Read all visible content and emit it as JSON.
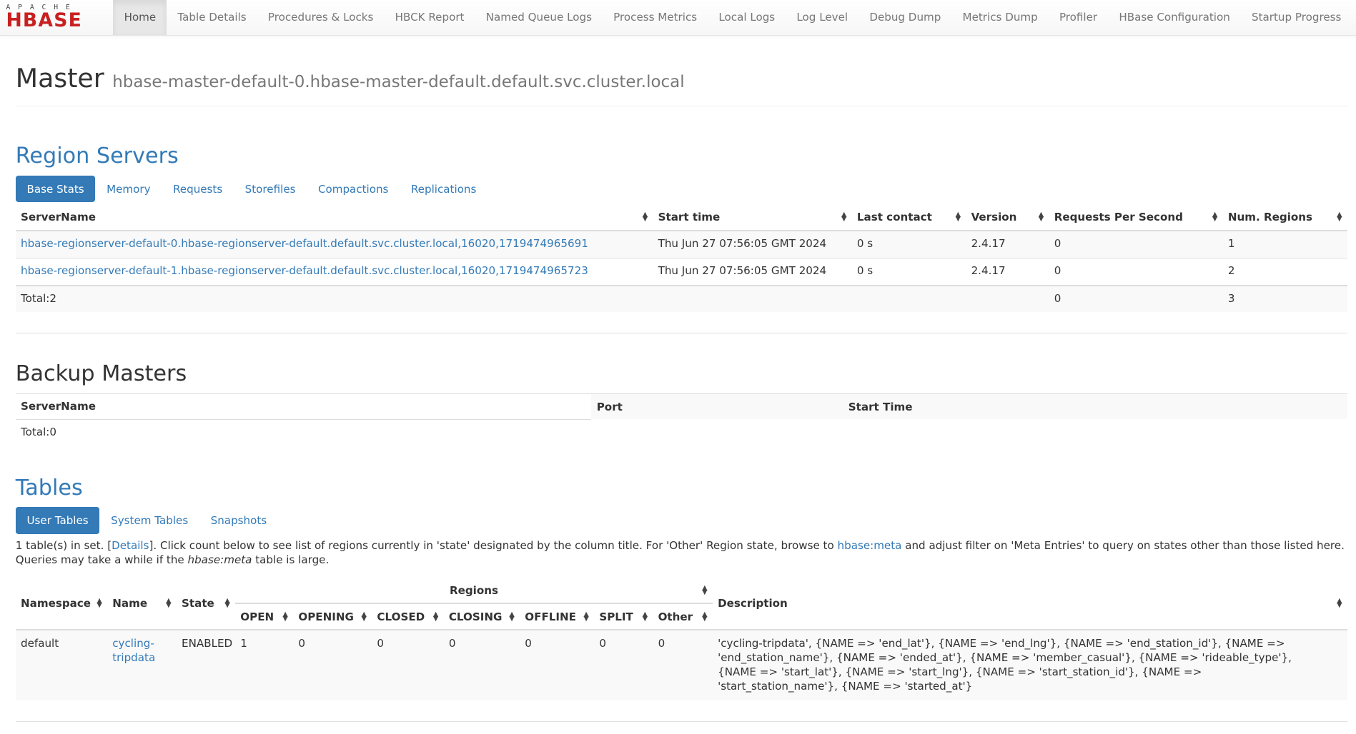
{
  "nav": {
    "logo_top": "APACHE",
    "logo_main": "HBASE",
    "items": [
      "Home",
      "Table Details",
      "Procedures & Locks",
      "HBCK Report",
      "Named Queue Logs",
      "Process Metrics",
      "Local Logs",
      "Log Level",
      "Debug Dump",
      "Metrics Dump",
      "Profiler",
      "HBase Configuration",
      "Startup Progress"
    ],
    "active": "Home"
  },
  "header": {
    "title": "Master",
    "host": "hbase-master-default-0.hbase-master-default.default.svc.cluster.local"
  },
  "region_servers": {
    "title": "Region Servers",
    "tabs": [
      "Base Stats",
      "Memory",
      "Requests",
      "Storefiles",
      "Compactions",
      "Replications"
    ],
    "columns": [
      "ServerName",
      "Start time",
      "Last contact",
      "Version",
      "Requests Per Second",
      "Num. Regions"
    ],
    "rows": [
      [
        "hbase-regionserver-default-0.hbase-regionserver-default.default.svc.cluster.local,16020,1719474965691",
        "Thu Jun 27 07:56:05 GMT 2024",
        "0 s",
        "2.4.17",
        "0",
        "1"
      ],
      [
        "hbase-regionserver-default-1.hbase-regionserver-default.default.svc.cluster.local,16020,1719474965723",
        "Thu Jun 27 07:56:05 GMT 2024",
        "0 s",
        "2.4.17",
        "0",
        "2"
      ]
    ],
    "total": [
      "Total:2",
      "",
      "",
      "",
      "0",
      "3"
    ]
  },
  "backup_masters": {
    "title": "Backup Masters",
    "columns": [
      "ServerName",
      "Port",
      "Start Time"
    ],
    "total": "Total:0"
  },
  "tables": {
    "title": "Tables",
    "tabs": [
      "User Tables",
      "System Tables",
      "Snapshots"
    ],
    "info_1": "1 table(s) in set. [",
    "details_link": "Details",
    "info_2": "]. Click count below to see list of regions currently in 'state' designated by the column title. For 'Other' Region state, browse to ",
    "meta_link": "hbase:meta",
    "info_3": " and adjust filter on 'Meta Entries' to query on states other than those listed here. Queries may take a while if the ",
    "meta_em": "hbase:meta",
    "info_4": " table is large.",
    "columns": {
      "namespace": "Namespace",
      "name": "Name",
      "state": "State",
      "regions": "Regions",
      "description": "Description",
      "region_states": [
        "OPEN",
        "OPENING",
        "CLOSED",
        "CLOSING",
        "OFFLINE",
        "SPLIT",
        "Other"
      ]
    },
    "rows": [
      {
        "namespace": "default",
        "name": "cycling-tripdata",
        "state": "ENABLED",
        "counts": [
          "1",
          "0",
          "0",
          "0",
          "0",
          "0",
          "0"
        ],
        "description": "'cycling-tripdata', {NAME => 'end_lat'}, {NAME => 'end_lng'}, {NAME => 'end_station_id'}, {NAME => 'end_station_name'}, {NAME => 'ended_at'}, {NAME => 'member_casual'}, {NAME => 'rideable_type'}, {NAME => 'start_lat'}, {NAME => 'start_lng'}, {NAME => 'start_station_id'}, {NAME => 'start_station_name'}, {NAME => 'started_at'}"
      }
    ]
  },
  "colors": {
    "link": "#337ab7",
    "logo": "#c82020"
  }
}
